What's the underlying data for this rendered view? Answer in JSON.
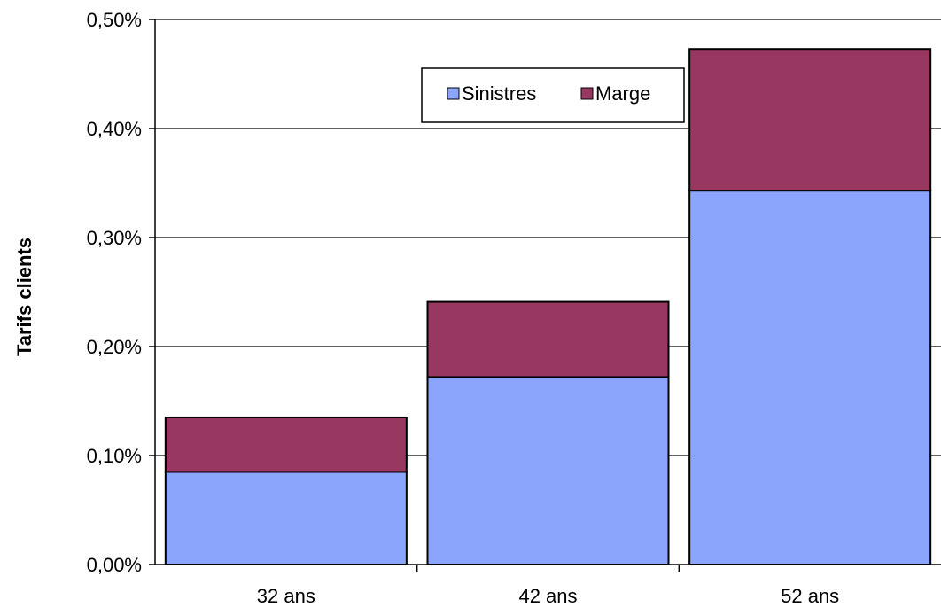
{
  "chart_data": {
    "type": "bar",
    "stacked": true,
    "title": "",
    "xlabel": "",
    "ylabel": "Tarifs clients",
    "categories": [
      "32 ans",
      "42 ans",
      "52 ans"
    ],
    "series": [
      {
        "name": "Sinistres",
        "color": "#8aa5fb",
        "values": [
          0.085,
          0.172,
          0.343
        ]
      },
      {
        "name": "Marge",
        "color": "#98375f",
        "values": [
          0.05,
          0.069,
          0.13
        ]
      }
    ],
    "ylim": [
      0,
      0.5
    ],
    "yticks": [
      {
        "value": 0.0,
        "label": "0,00%"
      },
      {
        "value": 0.1,
        "label": "0,10%"
      },
      {
        "value": 0.2,
        "label": "0,20%"
      },
      {
        "value": 0.3,
        "label": "0,30%"
      },
      {
        "value": 0.4,
        "label": "0,40%"
      },
      {
        "value": 0.5,
        "label": "0,50%"
      }
    ],
    "grid": true,
    "legend_position": "top-right"
  }
}
